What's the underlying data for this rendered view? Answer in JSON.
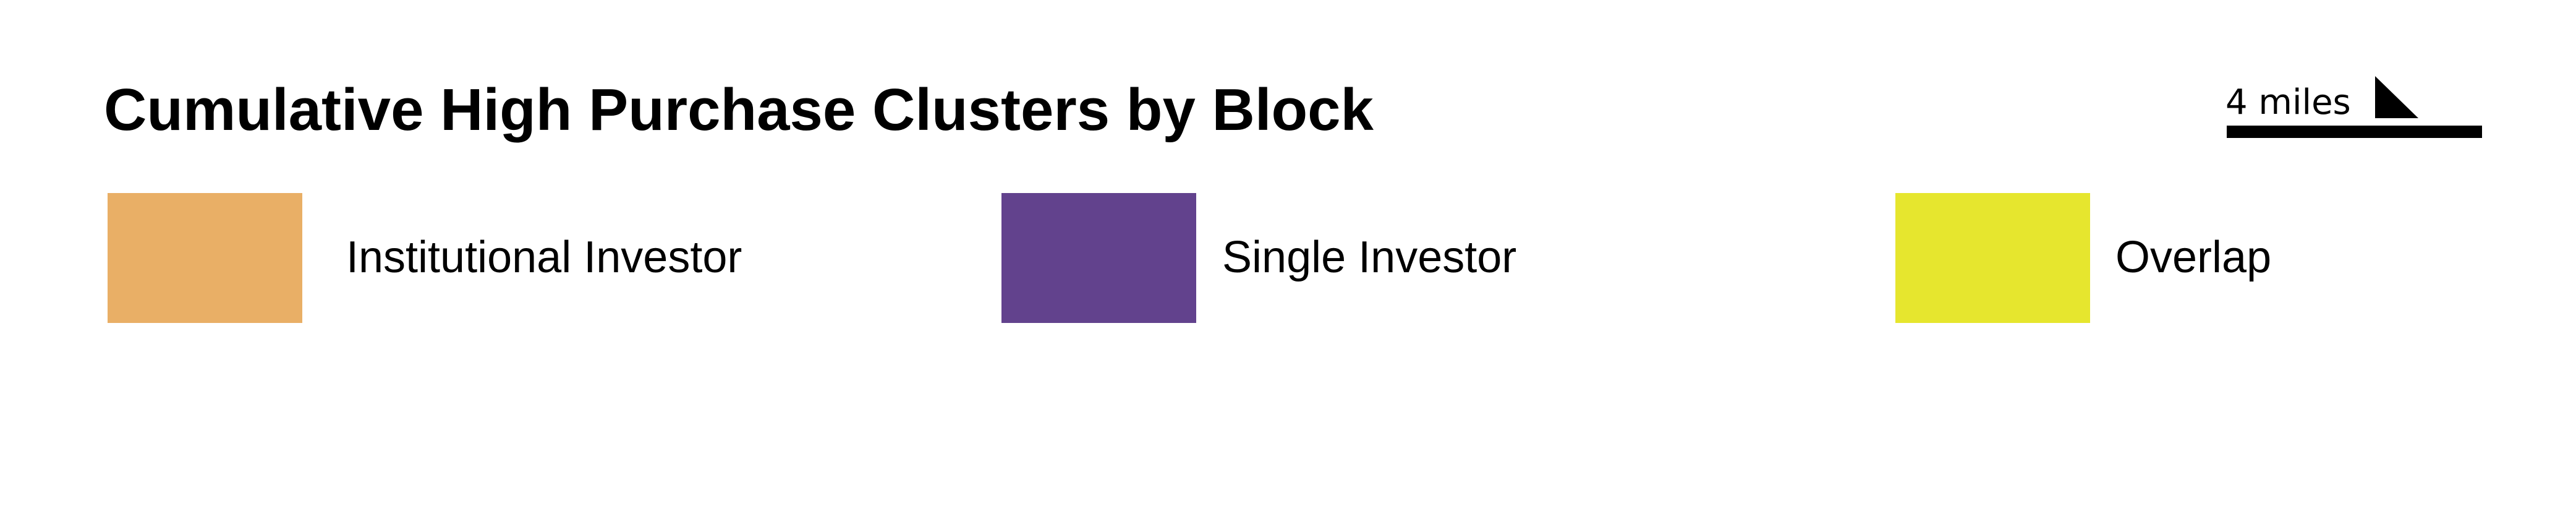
{
  "title": "Cumulative High Purchase Clusters by Block",
  "legend": {
    "items": [
      {
        "label": "Institutional Investor",
        "color": "#E9AF66"
      },
      {
        "label": "Single Investor",
        "color": "#62428D"
      },
      {
        "label": "Overlap",
        "color": "#E6E62E"
      }
    ]
  },
  "scale": {
    "label": "4 miles",
    "icon": "north-arrow-icon"
  }
}
